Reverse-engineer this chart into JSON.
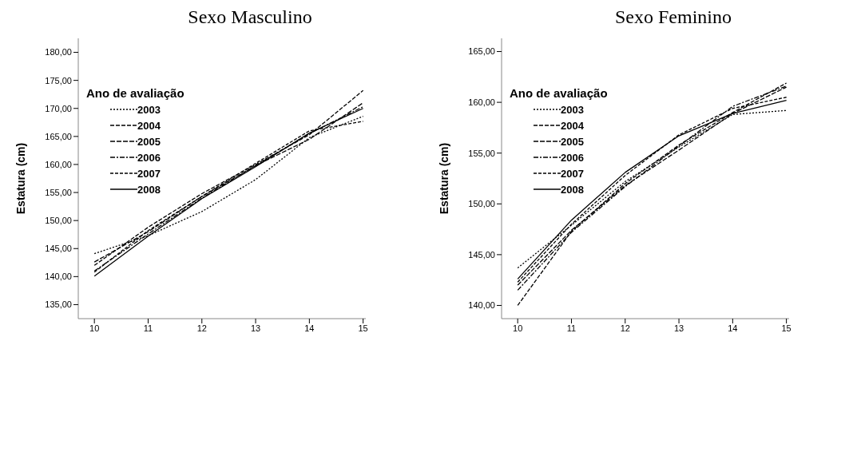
{
  "chart_data": [
    {
      "type": "line",
      "title": "Sexo Masculino",
      "ylabel": "Estatura (cm)",
      "legend_title": "Ano de avaliação",
      "legend": "top left",
      "marker": "none",
      "x": [
        10,
        11,
        12,
        13,
        14,
        15
      ],
      "xlim": [
        9.7,
        15.05
      ],
      "xticks": [
        10,
        11,
        12,
        13,
        14,
        15
      ],
      "ylim": [
        132.5,
        182.5
      ],
      "yticks": [
        {
          "value": 135,
          "label": "135,00"
        },
        {
          "value": 140,
          "label": "140,00"
        },
        {
          "value": 145,
          "label": "145,00"
        },
        {
          "value": 150,
          "label": "150,00"
        },
        {
          "value": 155,
          "label": "155,00"
        },
        {
          "value": 160,
          "label": "160,00"
        },
        {
          "value": 165,
          "label": "165,00"
        },
        {
          "value": 170,
          "label": "170,00"
        },
        {
          "value": 175,
          "label": "175,00"
        },
        {
          "value": 180,
          "label": "180,00"
        }
      ],
      "series": [
        {
          "name": "2003",
          "color": "#000000",
          "line_style": "dotted",
          "values": [
            144.1,
            147.3,
            151.6,
            157.3,
            164.8,
            168.6
          ]
        },
        {
          "name": "2004",
          "color": "#000000",
          "line_style": "dashed",
          "values": [
            142.0,
            148.8,
            154.8,
            160.0,
            165.3,
            173.2
          ]
        },
        {
          "name": "2005",
          "color": "#000000",
          "line_style": "dashed",
          "values": [
            142.6,
            148.0,
            154.3,
            159.8,
            164.5,
            171.0
          ]
        },
        {
          "name": "2006",
          "color": "#000000",
          "line_style": "dashed",
          "values": [
            141.0,
            147.6,
            154.0,
            159.8,
            165.5,
            170.3
          ]
        },
        {
          "name": "2007",
          "color": "#000000",
          "line_style": "dashed",
          "values": [
            140.8,
            148.2,
            154.3,
            160.2,
            166.0,
            167.7
          ]
        },
        {
          "name": "2008",
          "color": "#000000",
          "line_style": "solid",
          "values": [
            140.1,
            147.2,
            153.9,
            159.6,
            165.6,
            170.0
          ]
        }
      ]
    },
    {
      "type": "line",
      "title": "Sexo Feminino",
      "ylabel": "Estatura (cm)",
      "legend_title": "Ano de avaliação",
      "legend": "top left",
      "marker": "none",
      "x": [
        10,
        11,
        12,
        13,
        14,
        15
      ],
      "xlim": [
        9.7,
        15.05
      ],
      "xticks": [
        10,
        11,
        12,
        13,
        14,
        15
      ],
      "ylim": [
        138.7,
        166.3
      ],
      "yticks": [
        {
          "value": 140,
          "label": "140,00"
        },
        {
          "value": 145,
          "label": "145,00"
        },
        {
          "value": 150,
          "label": "150,00"
        },
        {
          "value": 155,
          "label": "155,00"
        },
        {
          "value": 160,
          "label": "160,00"
        },
        {
          "value": 165,
          "label": "165,00"
        }
      ],
      "series": [
        {
          "name": "2003",
          "color": "#000000",
          "line_style": "dotted",
          "values": [
            143.7,
            147.9,
            152.2,
            155.6,
            158.8,
            159.2
          ]
        },
        {
          "name": "2004",
          "color": "#000000",
          "line_style": "dashed",
          "values": [
            140.0,
            147.3,
            152.0,
            155.8,
            159.0,
            161.9
          ]
        },
        {
          "name": "2005",
          "color": "#000000",
          "line_style": "dashed",
          "values": [
            142.0,
            147.4,
            151.8,
            155.3,
            158.9,
            161.5
          ]
        },
        {
          "name": "2006",
          "color": "#000000",
          "line_style": "dashed",
          "values": [
            141.5,
            147.2,
            151.7,
            155.7,
            159.6,
            161.6
          ]
        },
        {
          "name": "2007",
          "color": "#000000",
          "line_style": "dashed",
          "values": [
            142.3,
            148.0,
            152.8,
            156.8,
            159.4,
            160.5
          ]
        },
        {
          "name": "2008",
          "color": "#000000",
          "line_style": "solid",
          "values": [
            142.6,
            148.4,
            153.1,
            156.7,
            158.9,
            160.2
          ]
        }
      ]
    }
  ]
}
